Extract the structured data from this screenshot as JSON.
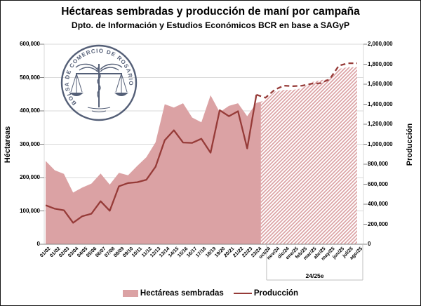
{
  "title": "Héctareas sembradas y producción de maní por campaña",
  "subtitle": "Dpto. de Información y Estudios Económicos BCR en base a SAGyP",
  "watermark": {
    "seal_text": "BOLSA DE COMERCIO DE ROSARIO",
    "color": "#3d4965"
  },
  "legend": {
    "items": [
      {
        "label": "Hectáreas sembradas",
        "type": "area",
        "color": "#dba2a4"
      },
      {
        "label": "Producción",
        "type": "line",
        "color": "#963b38"
      }
    ]
  },
  "colors": {
    "area_fill": "#dba2a4",
    "line": "#963b38",
    "gridline": "#d9d9d9",
    "axis": "#808080",
    "group_box": "#bfbfbf"
  },
  "chart_data": {
    "type": "area",
    "subtype": "combo-area-line-dual-axis",
    "categories": [
      "01/02",
      "01/02",
      "02/03",
      "03/04",
      "04/05",
      "05/06",
      "06/07",
      "07/08",
      "08/09",
      "09/10",
      "10/11",
      "11/12",
      "12/13",
      "13/14",
      "14/15",
      "15/16",
      "16/17",
      "17/18",
      "18/19",
      "19/20",
      "20/21",
      "21/22",
      "22/23",
      "23/24",
      "oct/24",
      "nov/24",
      "dic/24",
      "ene/25",
      "feb/25",
      "mar/25",
      "abr/25",
      "may/25",
      "jun/25",
      "jul/25",
      "ago/25"
    ],
    "group_label": "24/25e",
    "group_from_category": "oct/24",
    "group_to_category": "ago/25",
    "estimate_from_index": 24,
    "series": [
      {
        "name": "Hectáreas sembradas",
        "type": "area",
        "axis": "left",
        "color": "#dba2a4",
        "estimate_style": "hatched",
        "values": [
          250000,
          222000,
          211000,
          155000,
          170000,
          182000,
          212000,
          179000,
          214000,
          207000,
          235000,
          261000,
          306000,
          420000,
          410000,
          423000,
          380000,
          366000,
          447000,
          396000,
          415000,
          423000,
          384000,
          424000,
          432000,
          458000,
          463000,
          463000,
          468000,
          486000,
          492000,
          496000,
          526000,
          531000,
          531000
        ]
      },
      {
        "name": "Producción",
        "type": "line",
        "axis": "right",
        "color": "#963b38",
        "estimate_style": "dashed",
        "values": [
          390000,
          355000,
          340000,
          215000,
          280000,
          305000,
          430000,
          335000,
          580000,
          612000,
          620000,
          645000,
          775000,
          1040000,
          1140000,
          1017000,
          1013000,
          1055000,
          915000,
          1340000,
          1280000,
          1330000,
          958000,
          1495000,
          1465000,
          1545000,
          1585000,
          1580000,
          1585000,
          1605000,
          1610000,
          1650000,
          1785000,
          1810000,
          1810000
        ]
      }
    ],
    "left_axis": {
      "label": "Héctareas",
      "min": 0,
      "max": 600000,
      "step": 100000,
      "ticks": [
        0,
        100000,
        200000,
        300000,
        400000,
        500000,
        600000
      ]
    },
    "right_axis": {
      "label": "Producción",
      "min": 0,
      "max": 2000000,
      "step": 200000,
      "ticks": [
        0,
        200000,
        400000,
        600000,
        800000,
        1000000,
        1200000,
        1400000,
        1600000,
        1800000,
        2000000
      ]
    },
    "grid": true,
    "legend_position": "bottom"
  }
}
